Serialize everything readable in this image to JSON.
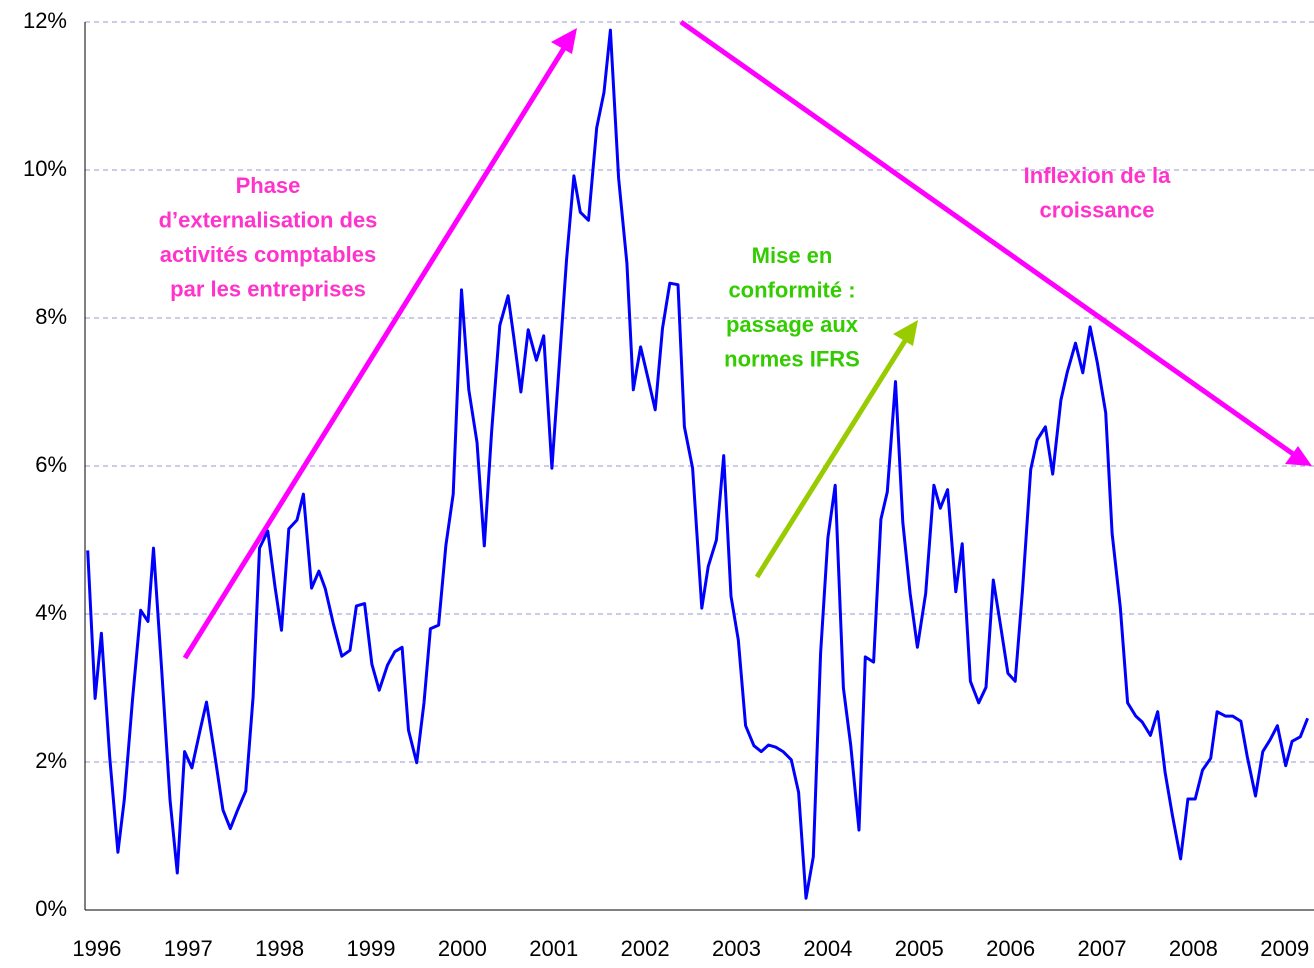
{
  "chart_data": {
    "type": "line",
    "x": [
      1995.9,
      1995.98,
      1996.05,
      1996.14,
      1996.23,
      1996.3,
      1996.39,
      1996.48,
      1996.56,
      1996.62,
      1996.71,
      1996.8,
      1996.88,
      1996.96,
      1997.04,
      1997.13,
      1997.2,
      1997.29,
      1997.38,
      1997.46,
      1997.54,
      1997.63,
      1997.71,
      1997.78,
      1997.87,
      1997.95,
      1998.02,
      1998.1,
      1998.19,
      1998.26,
      1998.35,
      1998.43,
      1998.5,
      1998.59,
      1998.68,
      1998.77,
      1998.84,
      1998.93,
      1999.01,
      1999.09,
      1999.18,
      1999.26,
      1999.34,
      1999.41,
      1999.5,
      1999.58,
      1999.65,
      1999.74,
      1999.82,
      1999.9,
      1999.99,
      2000.07,
      2000.16,
      2000.24,
      2000.32,
      2000.41,
      2000.5,
      2000.56,
      2000.64,
      2000.72,
      2000.81,
      2000.89,
      2000.98,
      2001.05,
      2001.14,
      2001.22,
      2001.29,
      2001.38,
      2001.47,
      2001.55,
      2001.62,
      2001.71,
      2001.8,
      2001.87,
      2001.95,
      2002.03,
      2002.11,
      2002.19,
      2002.27,
      2002.36,
      2002.43,
      2002.52,
      2002.62,
      2002.69,
      2002.78,
      2002.86,
      2002.94,
      2003.02,
      2003.1,
      2003.19,
      2003.27,
      2003.35,
      2003.43,
      2003.51,
      2003.6,
      2003.68,
      2003.76,
      2003.84,
      2003.92,
      2004.0,
      2004.08,
      2004.17,
      2004.25,
      2004.34,
      2004.41,
      2004.5,
      2004.58,
      2004.65,
      2004.74,
      2004.82,
      2004.9,
      2004.98,
      2005.07,
      2005.16,
      2005.23,
      2005.31,
      2005.4,
      2005.47,
      2005.56,
      2005.65,
      2005.73,
      2005.81,
      2005.89,
      2005.97,
      2006.05,
      2006.13,
      2006.22,
      2006.29,
      2006.38,
      2006.46,
      2006.55,
      2006.62,
      2006.71,
      2006.79,
      2006.87,
      2006.95,
      2007.04,
      2007.11,
      2007.2,
      2007.28,
      2007.37,
      2007.44,
      2007.53,
      2007.61,
      2007.69,
      2007.77,
      2007.86,
      2007.94,
      2008.02,
      2008.1,
      2008.19,
      2008.26,
      2008.35,
      2008.43,
      2008.52,
      2008.59,
      2008.68,
      2008.76,
      2008.84,
      2008.92,
      2009.01,
      2009.08,
      2009.17,
      2009.25
    ],
    "values": [
      4.86,
      2.86,
      3.74,
      2.07,
      0.78,
      1.49,
      2.84,
      4.05,
      3.9,
      4.89,
      3.22,
      1.49,
      0.5,
      2.14,
      1.92,
      2.43,
      2.81,
      2.09,
      1.35,
      1.1,
      1.35,
      1.61,
      2.88,
      4.89,
      5.12,
      4.36,
      3.78,
      5.15,
      5.27,
      5.62,
      4.35,
      4.58,
      4.34,
      3.86,
      3.43,
      3.51,
      4.11,
      4.14,
      3.32,
      2.97,
      3.31,
      3.49,
      3.55,
      2.43,
      1.99,
      2.8,
      3.8,
      3.85,
      4.93,
      5.62,
      8.38,
      7.03,
      6.32,
      4.92,
      6.46,
      7.9,
      8.3,
      7.76,
      7.0,
      7.84,
      7.43,
      7.76,
      5.97,
      7.19,
      8.78,
      9.92,
      9.43,
      9.32,
      10.57,
      11.05,
      11.89,
      9.89,
      8.74,
      7.03,
      7.61,
      7.19,
      6.76,
      7.86,
      8.47,
      8.45,
      6.53,
      5.97,
      4.08,
      4.64,
      5.0,
      6.14,
      4.24,
      3.65,
      2.49,
      2.22,
      2.14,
      2.23,
      2.2,
      2.14,
      2.03,
      1.59,
      0.16,
      0.72,
      3.47,
      5.03,
      5.74,
      3.0,
      2.23,
      1.08,
      3.42,
      3.35,
      5.28,
      5.65,
      7.14,
      5.24,
      4.28,
      3.55,
      4.28,
      5.74,
      5.43,
      5.68,
      4.3,
      4.95,
      3.09,
      2.8,
      3.01,
      4.46,
      3.84,
      3.2,
      3.09,
      4.32,
      5.95,
      6.35,
      6.53,
      5.89,
      6.89,
      7.27,
      7.66,
      7.26,
      7.88,
      7.39,
      6.72,
      5.09,
      4.09,
      2.8,
      2.62,
      2.54,
      2.36,
      2.68,
      1.86,
      1.28,
      0.69,
      1.5,
      1.5,
      1.89,
      2.05,
      2.68,
      2.62,
      2.62,
      2.55,
      2.07,
      1.54,
      2.14,
      2.3,
      2.49,
      1.95,
      2.28,
      2.34,
      2.59
    ],
    "color": "#0000ff",
    "xlim": [
      1995.87,
      2009.32
    ],
    "xticks": [
      1996,
      1997,
      1998,
      1999,
      2000,
      2001,
      2002,
      2003,
      2004,
      2005,
      2006,
      2007,
      2008,
      2009
    ],
    "ylim": [
      0,
      12
    ],
    "yticks": [
      {
        "value": 0,
        "label": "0%"
      },
      {
        "value": 2,
        "label": "2%"
      },
      {
        "value": 4,
        "label": "4%"
      },
      {
        "value": 6,
        "label": "6%"
      },
      {
        "value": 8,
        "label": "8%"
      },
      {
        "value": 10,
        "label": "10%"
      },
      {
        "value": 12,
        "label": "12%"
      }
    ],
    "grid": true,
    "annotations": [
      {
        "lines": [
          "Phase",
          "d’externalisation des",
          "activités comptables",
          "par les entreprises"
        ],
        "color": "#ff33cc"
      },
      {
        "lines": [
          "Inflexion de la",
          "croissance"
        ],
        "color": "#ff33cc"
      },
      {
        "lines": [
          "Mise en",
          "conformité :",
          "passage aux",
          "normes IFRS"
        ],
        "color": "#33cc00"
      }
    ]
  }
}
